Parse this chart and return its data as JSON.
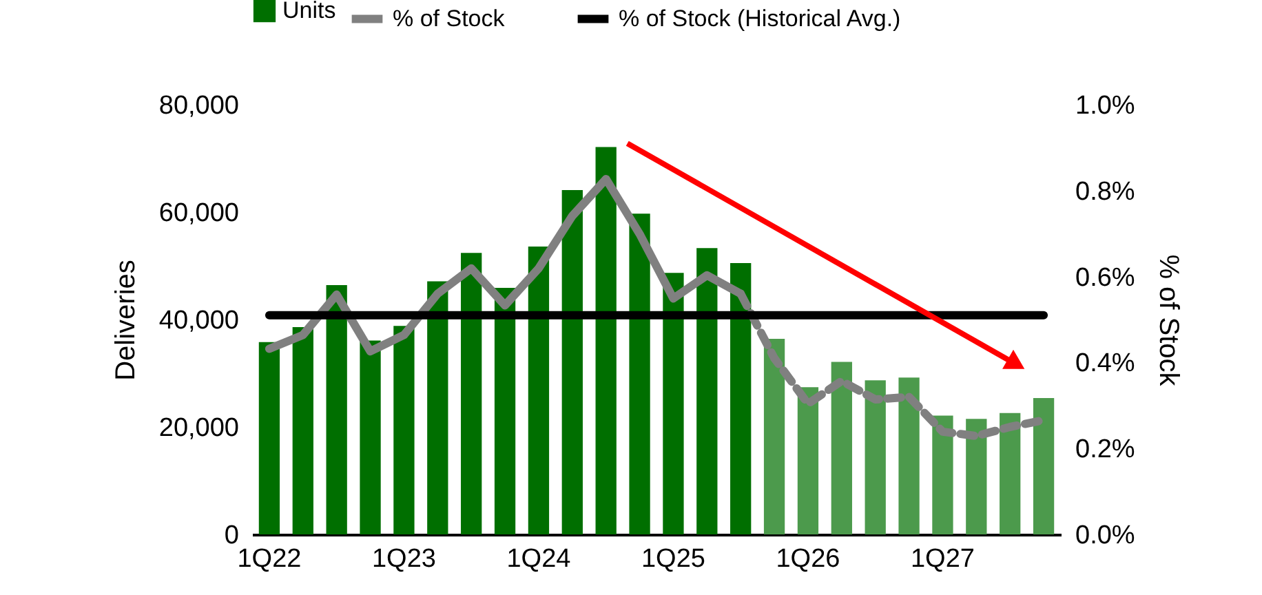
{
  "chart_data": {
    "type": "bar",
    "categories": [
      "1Q22",
      null,
      null,
      null,
      "1Q23",
      null,
      null,
      null,
      "1Q24",
      null,
      null,
      null,
      "1Q25",
      null,
      null,
      null,
      "1Q26",
      null,
      null,
      null,
      "1Q27",
      null,
      null,
      null
    ],
    "series": [
      {
        "name": "Units",
        "color": "#006f00",
        "values": [
          35800,
          38600,
          46400,
          36100,
          38800,
          47100,
          52400,
          45900,
          53600,
          64100,
          72100,
          59700,
          48700,
          53300,
          50500,
          null,
          null,
          null,
          null,
          null,
          null,
          null,
          null,
          null
        ]
      },
      {
        "color": "#4c9a4c",
        "values": [
          null,
          null,
          null,
          null,
          null,
          null,
          null,
          null,
          null,
          null,
          null,
          null,
          null,
          null,
          null,
          36400,
          27400,
          32100,
          28700,
          29200,
          22100,
          21500,
          22600,
          25400
        ]
      },
      {
        "name": "% of Stock",
        "type": "line",
        "axis": "y2",
        "color": "#808080",
        "values": [
          0.432,
          0.464,
          0.558,
          0.426,
          0.464,
          0.56,
          0.619,
          0.533,
          0.619,
          0.741,
          0.827,
          0.699,
          0.549,
          0.603,
          0.56,
          null,
          null,
          null,
          null,
          null,
          null,
          null,
          null,
          null
        ]
      },
      {
        "type": "line",
        "axis": "y2",
        "color": "#808080",
        "line_style": "dashed",
        "values": [
          null,
          null,
          null,
          null,
          null,
          null,
          null,
          null,
          null,
          null,
          null,
          null,
          null,
          null,
          0.56,
          0.41,
          0.304,
          0.357,
          0.314,
          0.32,
          0.239,
          0.229,
          0.25,
          0.266
        ]
      },
      {
        "name": "% of Stock (Historical Avg.)",
        "type": "line",
        "axis": "y2",
        "color": "#000000",
        "values": [
          0.51,
          0.51,
          0.51,
          0.51,
          0.51,
          0.51,
          0.51,
          0.51,
          0.51,
          0.51,
          0.51,
          0.51,
          0.51,
          0.51,
          0.51,
          0.51,
          0.51,
          0.51,
          0.51,
          0.51,
          0.51,
          0.51,
          0.51,
          0.51
        ]
      }
    ],
    "ylabel": "Deliveries",
    "y2label": "% of Stock",
    "ylim": [
      0,
      80000
    ],
    "yticks": [
      0,
      {
        "value": 20000,
        "label": "20,000"
      },
      {
        "value": 40000,
        "label": "40,000"
      },
      {
        "value": 60000,
        "label": "60,000"
      },
      {
        "value": 80000,
        "label": "80,000"
      }
    ],
    "y2lim": [
      0,
      1.0
    ],
    "y2ticks": [
      {
        "value": 0,
        "label": "0.0%"
      },
      {
        "value": 0.2,
        "label": "0.2%"
      },
      {
        "value": 0.4,
        "label": "0.4%"
      },
      {
        "value": 0.6,
        "label": "0.6%"
      },
      {
        "value": 0.8,
        "label": "0.8%"
      },
      {
        "value": 1.0,
        "label": "1.0%"
      }
    ],
    "legend": "top",
    "grid": false,
    "marker": "none",
    "line_style": "solid"
  }
}
